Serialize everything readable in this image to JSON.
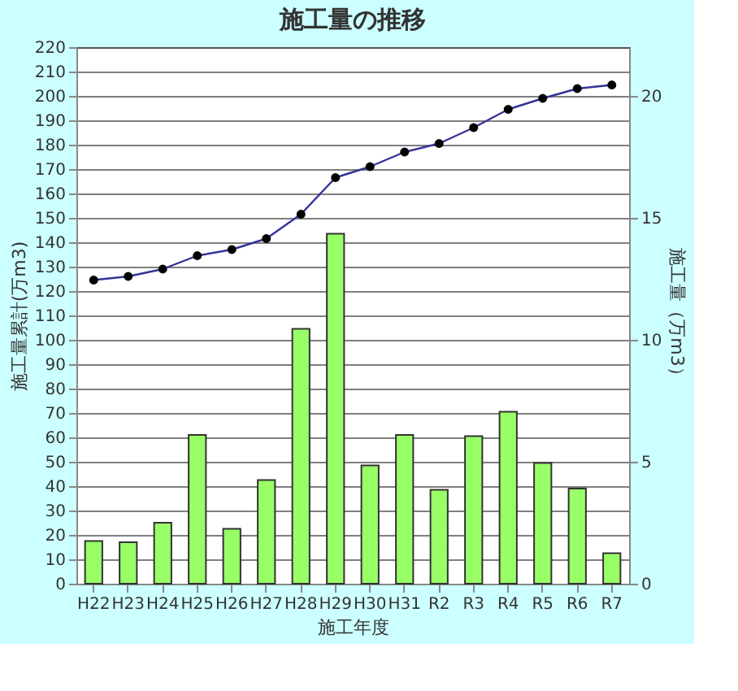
{
  "chart_data": {
    "type": "bar",
    "title": "施工量の推移",
    "xlabel": "施工年度",
    "ylabel": "施工量累計(万m3)",
    "y2label": "施工量（万m3）",
    "categories": [
      "H22",
      "H23",
      "H24",
      "H25",
      "H26",
      "H27",
      "H28",
      "H29",
      "H30",
      "H31",
      "R2",
      "R3",
      "R4",
      "R5",
      "R6",
      "R7"
    ],
    "series": [
      {
        "axis": "y2",
        "color": "#99ff66",
        "values": [
          1.75,
          1.7,
          2.5,
          6.1,
          2.25,
          4.25,
          10.45,
          14.35,
          4.85,
          6.1,
          3.85,
          6.05,
          7.05,
          4.95,
          3.9,
          1.25
        ]
      },
      {
        "type": "line",
        "axis": "y",
        "color": "#333399",
        "marker": "circle",
        "values": [
          124.5,
          126,
          129,
          134.5,
          137,
          141.5,
          151.5,
          166.5,
          171,
          177,
          180.5,
          187,
          194.5,
          199,
          203,
          204.5
        ]
      }
    ],
    "ylim": [
      0,
      220
    ],
    "yticks": [
      0,
      10,
      20,
      30,
      40,
      50,
      60,
      70,
      80,
      90,
      100,
      110,
      120,
      130,
      140,
      150,
      160,
      170,
      180,
      190,
      200,
      210,
      220
    ],
    "y2lim": [
      0,
      22
    ],
    "y2ticks": [
      0,
      5,
      10,
      15,
      20
    ],
    "grid": "y"
  }
}
